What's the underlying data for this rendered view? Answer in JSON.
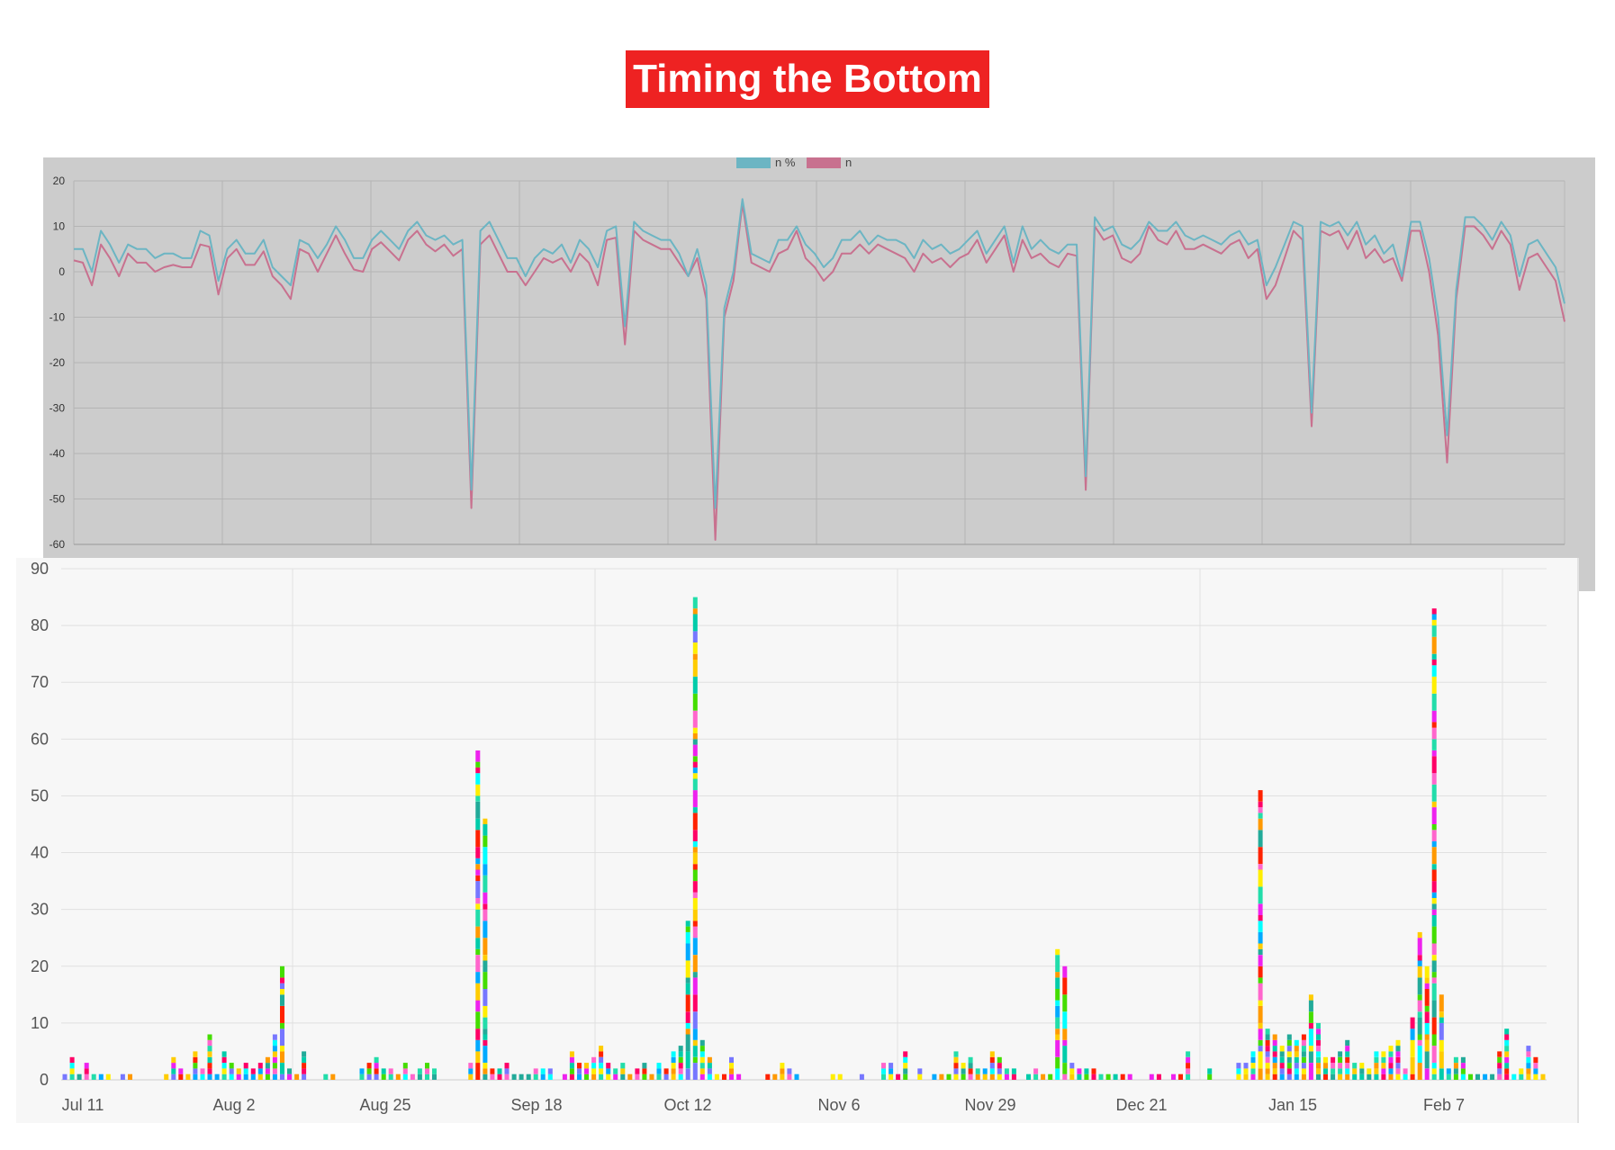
{
  "title": "Timing the Bottom",
  "colors": {
    "title_bg": "#ee2222",
    "title_fg": "#ffffff",
    "top_bg": "#cccccc",
    "series_pct": "#6cb5c3",
    "series_n": "#c8718f",
    "bottom_bg": "#f7f7f7",
    "stack_palette": [
      "#ff9900",
      "#22ddaa",
      "#ffee00",
      "#00aaff",
      "#00ffff",
      "#ff66cc",
      "#7777ff",
      "#ff0066",
      "#44dd00",
      "#ff2200",
      "#00ccaa",
      "#ee22ee",
      "#22aa99",
      "#ffcc00"
    ]
  },
  "chart_data": [
    {
      "type": "line",
      "legend": [
        "n %",
        "n"
      ],
      "legend_position": "top-center",
      "grid": true,
      "ylim": [
        -60,
        20
      ],
      "yticks": [
        "20",
        "10",
        "0",
        "-10",
        "-20",
        "-30",
        "-40",
        "-50",
        "-60"
      ],
      "xticks": [
        "Jul 11",
        "Aug 2",
        "Aug 25",
        "Sep 18",
        "Oct 12",
        "Nov 6",
        "Nov 29",
        "Dec 21",
        "Jan 15",
        "Feb 7"
      ],
      "series": [
        {
          "name": "n %",
          "values": [
            5,
            5,
            0,
            9,
            6,
            2,
            6,
            5,
            5,
            3,
            4,
            4,
            3,
            3,
            9,
            8,
            -2,
            5,
            7,
            4,
            4,
            7,
            1,
            -1,
            -3,
            7,
            6,
            3,
            6,
            10,
            7,
            3,
            3,
            7,
            9,
            7,
            5,
            9,
            11,
            8,
            7,
            8,
            6,
            7,
            -48,
            9,
            11,
            7,
            3,
            3,
            -1,
            3,
            5,
            4,
            6,
            2,
            7,
            5,
            1,
            9,
            10,
            -12,
            11,
            9,
            8,
            7,
            7,
            4,
            -1,
            5,
            -3,
            -52,
            -8,
            0,
            16,
            4,
            3,
            2,
            7,
            7,
            10,
            6,
            4,
            1,
            3,
            7,
            7,
            9,
            6,
            8,
            7,
            7,
            6,
            3,
            7,
            5,
            6,
            4,
            5,
            7,
            9,
            4,
            7,
            10,
            2,
            10,
            5,
            7,
            5,
            4,
            6,
            6,
            -45,
            12,
            9,
            10,
            6,
            5,
            7,
            11,
            9,
            9,
            11,
            8,
            7,
            8,
            7,
            6,
            8,
            9,
            6,
            7,
            -3,
            1,
            6,
            11,
            10,
            -31,
            11,
            10,
            11,
            8,
            11,
            6,
            8,
            4,
            6,
            -1,
            11,
            11,
            3,
            -10,
            -36,
            -4,
            12,
            12,
            10,
            7,
            11,
            8,
            -1,
            6,
            7,
            4,
            1,
            -7
          ]
        },
        {
          "name": "n",
          "values": [
            2.5,
            2,
            -3,
            6,
            3,
            -1,
            4,
            2,
            2,
            0,
            1,
            1.5,
            1,
            1,
            6,
            5.5,
            -5,
            3,
            5,
            1.5,
            1.5,
            4.5,
            -1,
            -3,
            -6,
            5,
            4,
            0,
            4,
            8,
            4,
            0.5,
            0,
            5,
            6.5,
            4.5,
            2.5,
            7,
            9,
            6,
            4.5,
            6,
            3.5,
            5,
            -52,
            6,
            8,
            4,
            0,
            0,
            -3,
            0,
            3,
            2,
            3,
            0,
            4,
            2,
            -3,
            7,
            7.5,
            -16,
            9,
            7,
            6,
            5,
            5,
            2,
            -1,
            3,
            -6,
            -59,
            -10,
            -2,
            15,
            2,
            1,
            0,
            4,
            5,
            9,
            3,
            1,
            -2,
            0,
            4,
            4,
            6,
            4,
            6,
            5,
            4,
            3,
            0,
            4,
            2,
            3,
            1,
            3,
            4,
            7,
            2,
            5,
            8,
            0,
            7,
            3,
            4,
            2,
            1,
            4,
            3.5,
            -48,
            10,
            7,
            8,
            3,
            2,
            4,
            10,
            7,
            6,
            9,
            5,
            5,
            6,
            5,
            4,
            6,
            7,
            3,
            5,
            -6,
            -3,
            3,
            9,
            7,
            -34,
            9,
            8,
            9,
            5,
            9,
            3,
            5,
            2,
            3,
            -2,
            9,
            9,
            0,
            -14,
            -42,
            -6,
            10,
            10,
            8,
            5,
            9,
            6,
            -4,
            3,
            4,
            1,
            -2,
            -11
          ]
        }
      ]
    },
    {
      "type": "bar",
      "stacked": true,
      "grid": true,
      "ylim": [
        0,
        90
      ],
      "yticks": [
        "90",
        "80",
        "70",
        "60",
        "50",
        "40",
        "30",
        "20",
        "10",
        "0"
      ],
      "xticks": [
        "Jul 11",
        "Aug 2",
        "Aug 25",
        "Sep 18",
        "Oct 12",
        "Nov 6",
        "Nov 29",
        "Dec 21",
        "Jan 15",
        "Feb 7"
      ],
      "values": [
        1,
        4,
        1,
        3,
        1,
        1,
        1,
        0,
        1,
        1,
        0,
        0,
        0,
        0,
        1,
        4,
        2,
        1,
        5,
        2,
        8,
        1,
        5,
        3,
        2,
        3,
        2,
        3,
        4,
        8,
        20,
        2,
        1,
        5,
        0,
        0,
        1,
        1,
        0,
        0,
        0,
        2,
        3,
        4,
        2,
        2,
        1,
        3,
        1,
        2,
        3,
        2,
        0,
        0,
        0,
        0,
        3,
        58,
        46,
        2,
        2,
        3,
        1,
        1,
        1,
        2,
        2,
        2,
        0,
        1,
        5,
        3,
        3,
        4,
        6,
        3,
        2,
        3,
        1,
        2,
        3,
        1,
        3,
        2,
        5,
        6,
        28,
        85,
        7,
        4,
        1,
        1,
        4,
        1,
        0,
        0,
        0,
        1,
        1,
        3,
        2,
        1,
        0,
        0,
        0,
        0,
        1,
        1,
        0,
        0,
        1,
        0,
        0,
        3,
        3,
        1,
        5,
        0,
        2,
        0,
        1,
        1,
        1,
        5,
        3,
        4,
        2,
        2,
        5,
        4,
        2,
        2,
        0,
        1,
        2,
        1,
        1,
        23,
        20,
        3,
        2,
        2,
        2,
        1,
        1,
        1,
        1,
        1,
        0,
        0,
        1,
        1,
        0,
        1,
        1,
        5,
        0,
        0,
        2,
        0,
        0,
        0,
        3,
        3,
        5,
        51,
        9,
        8,
        6,
        8,
        7,
        8,
        15,
        10,
        4,
        4,
        5,
        7,
        3,
        3,
        2,
        5,
        5,
        6,
        7,
        2,
        11,
        26,
        20,
        83,
        15,
        2,
        4,
        4,
        1,
        1,
        1,
        1,
        5,
        9,
        1,
        2,
        6,
        4,
        1
      ]
    }
  ]
}
